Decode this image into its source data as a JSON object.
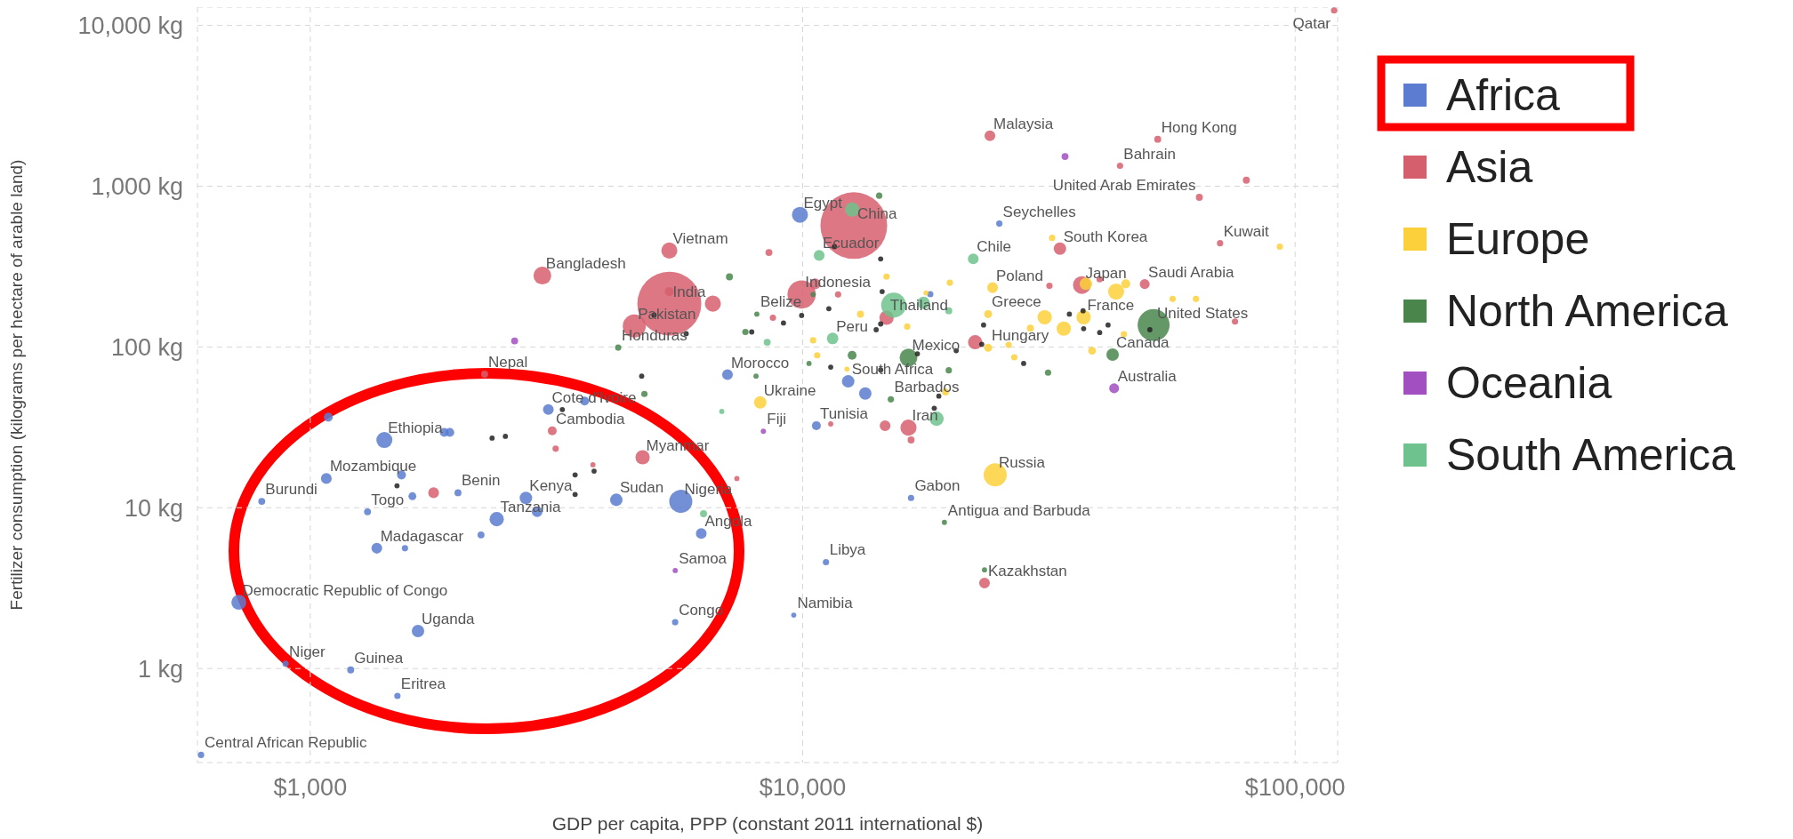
{
  "chart_data": {
    "type": "bubble",
    "xlabel": "GDP per capita, PPP (constant 2011 international $)",
    "ylabel": "Fertilizer consumption (kilograms per hectare of arable land)",
    "log": "xy",
    "grid": true,
    "legend": "top right",
    "xlim": [
      590,
      122000
    ],
    "xticks": [
      {
        "value": 1000,
        "label": "$1,000"
      },
      {
        "value": 10000,
        "label": "$10,000"
      },
      {
        "value": 100000,
        "label": "$100,000"
      }
    ],
    "ylim": [
      0.26,
      13000
    ],
    "yticks": [
      {
        "value": 1,
        "label": "1 kg"
      },
      {
        "value": 10,
        "label": "10 kg"
      },
      {
        "value": 100,
        "label": "100 kg"
      },
      {
        "value": 1000,
        "label": "1,000 kg"
      },
      {
        "value": 10000,
        "label": "10,000 kg"
      }
    ],
    "series": [
      {
        "name": "Africa",
        "color": "#5b7cd0",
        "x": [
          600,
          716,
          891,
          1208,
          1503,
          1655,
          1365,
          1557,
          2222,
          797,
          1078,
          1532,
          1307,
          1612,
          1414,
          1871,
          1920,
          1088,
          1995,
          2391,
          2889,
          2741,
          4183,
          5655,
          6223,
          3044,
          3606,
          7035,
          12370,
          13400,
          10660,
          18160,
          16600,
          9873,
          25080,
          11150,
          9590,
          5508
        ],
        "values": [
          0.29,
          2.58,
          1.07,
          0.98,
          0.675,
          1.71,
          5.6,
          5.6,
          6.78,
          10.96,
          15.2,
          16.0,
          9.44,
          11.8,
          26.4,
          29.4,
          29.4,
          36.6,
          12.4,
          8.49,
          9.44,
          11.5,
          11.2,
          10.96,
          6.92,
          40.8,
          46.1,
          67.3,
          61.1,
          51.3,
          32.4,
          213,
          11.5,
          664,
          585,
          4.59,
          2.15,
          1.94
        ],
        "sizes": [
          0.009,
          0.05,
          0.009,
          0.011,
          0.009,
          0.035,
          0.026,
          0.009,
          0.011,
          0.011,
          0.026,
          0.018,
          0.011,
          0.014,
          0.058,
          0.018,
          0.018,
          0.018,
          0.011,
          0.046,
          0.026,
          0.035,
          0.035,
          0.12,
          0.026,
          0.026,
          0.018,
          0.026,
          0.035,
          0.035,
          0.018,
          0.009,
          0.009,
          0.058,
          0.009,
          0.009,
          0.006,
          0.009
        ]
      },
      {
        "name": "Asia",
        "color": "#d65f6d",
        "x": [
          120000,
          24000,
          52600,
          44100,
          79600,
          63900,
          70400,
          33300,
          49500,
          36900,
          40100,
          31700,
          75500,
          22400,
          16400,
          14700,
          16600,
          11400,
          14800,
          9950,
          10600,
          11800,
          8700,
          12700,
          8540,
          5360,
          2960,
          5360,
          4550,
          5360,
          6570,
          2260,
          3100,
          3150,
          4730,
          3750,
          1780,
          7350,
          23400
        ],
        "values": [
          12400,
          2060,
          1960,
          1340,
          1090,
          853,
          442,
          409,
          246,
          243,
          264,
          240,
          144,
          107,
          31.5,
          32.4,
          26.4,
          33.2,
          152,
          212,
          247,
          212,
          152,
          569,
          387,
          398,
          278,
          186,
          135,
          221,
          186,
          67.7,
          30.1,
          23.3,
          20.6,
          18.5,
          12.4,
          15.2,
          3.4
        ],
        "sizes": [
          0.009,
          0.026,
          0.011,
          0.009,
          0.011,
          0.011,
          0.009,
          0.035,
          0.022,
          0.071,
          0.009,
          0.009,
          0.009,
          0.046,
          0.058,
          0.026,
          0.011,
          0.006,
          0.046,
          0.18,
          0.026,
          0.009,
          0.009,
          1,
          0.011,
          0.058,
          0.071,
          0.92,
          0.12,
          0.018,
          0.058,
          0.011,
          0.018,
          0.009,
          0.046,
          0.006,
          0.026,
          0.006,
          0.026
        ]
      },
      {
        "name": "Europe",
        "color": "#fcd03b",
        "x": [
          24600,
          8200,
          24300,
          23800,
          37200,
          37600,
          43300,
          45300,
          31000,
          33900,
          23800,
          26200,
          26900,
          29000,
          38700,
          44900,
          56400,
          62900,
          93100,
          32100,
          14800,
          19900,
          17800,
          13100,
          16300,
          10500,
          10700,
          12300,
          19500
        ],
        "values": [
          16.0,
          45.2,
          234,
          160,
          153,
          247,
          221,
          247,
          153,
          130,
          98.9,
          103,
          86.2,
          131,
          94.8,
          120,
          199,
          199,
          421,
          477,
          274,
          251,
          217,
          160,
          134,
          110,
          88.7,
          72.8,
          52.5
        ],
        "sizes": [
          0.12,
          0.035,
          0.026,
          0.014,
          0.046,
          0.035,
          0.058,
          0.018,
          0.046,
          0.046,
          0.014,
          0.009,
          0.009,
          0.011,
          0.014,
          0.009,
          0.009,
          0.009,
          0.009,
          0.009,
          0.009,
          0.009,
          0.006,
          0.011,
          0.009,
          0.009,
          0.009,
          0.006,
          0.011
        ]
      },
      {
        "name": "North America",
        "color": "#4a864c",
        "x": [
          51600,
          42600,
          16400,
          15100,
          19400,
          8070,
          7650,
          4220,
          7100,
          4770,
          8040,
          10300,
          12600,
          19800,
          31500,
          10500,
          14300,
          23400
        ],
        "values": [
          137,
          89.7,
          85.9,
          47.2,
          8.11,
          160,
          124,
          99.1,
          273,
          51.0,
          65.9,
          79.0,
          88.7,
          71.6,
          69.3,
          212,
          873,
          4.11
        ],
        "sizes": [
          0.23,
          0.035,
          0.071,
          0.009,
          0.006,
          0.006,
          0.009,
          0.009,
          0.011,
          0.009,
          0.006,
          0.006,
          0.018,
          0.009,
          0.009,
          0.006,
          0.009,
          0.006
        ]
      },
      {
        "name": "Oceania",
        "color": "#a24fc2",
        "x": [
          42900,
          34100,
          2600,
          5510,
          8320
        ],
        "values": [
          55.3,
          1530,
          109,
          4.07,
          29.9
        ],
        "sizes": [
          0.022,
          0.011,
          0.011,
          0.006,
          0.006
        ]
      },
      {
        "name": "South America",
        "color": "#6ec28d",
        "x": [
          22200,
          10800,
          12600,
          11500,
          15300,
          17600,
          19800,
          18700,
          8470,
          6290,
          6850
        ],
        "values": [
          353,
          371,
          716,
          113,
          182,
          188,
          168,
          35.8,
          107,
          9.18,
          39.7
        ],
        "sizes": [
          0.026,
          0.026,
          0.046,
          0.03,
          0.14,
          0.035,
          0.011,
          0.046,
          0.011,
          0.011,
          0.006
        ]
      },
      {
        "color": "#222222",
        "x": [
          2340,
          2490,
          1500,
          3450,
          3770,
          3450,
          3250,
          4710,
          4990,
          5800,
          7880,
          9140,
          9950,
          11300,
          14500,
          14400,
          14100,
          11400,
          14400,
          17100,
          20500,
          23100,
          23300,
          28100,
          34800,
          37100,
          37200,
          40100,
          41700,
          50700,
          18900,
          18500,
          14400,
          11600
        ],
        "values": [
          27.1,
          27.8,
          13.7,
          16.0,
          16.9,
          12.1,
          40.8,
          65.9,
          158,
          121,
          124,
          141,
          157,
          173,
          221,
          139,
          128,
          74.9,
          72.0,
          90.7,
          94.8,
          104,
          137,
          79.0,
          160,
          168,
          130,
          123,
          137,
          128,
          49.5,
          41.6,
          353,
          421
        ],
        "sizes": [
          0.006,
          0.006,
          0.006,
          0.006,
          0.006,
          0.006,
          0.006,
          0.006,
          0.006,
          0.006,
          0.006,
          0.006,
          0.006,
          0.006,
          0.006,
          0.006,
          0.006,
          0.006,
          0.006,
          0.006,
          0.006,
          0.006,
          0.006,
          0.006,
          0.006,
          0.006,
          0.006,
          0.006,
          0.006,
          0.006,
          0.006,
          0.006,
          0.006,
          0.006
        ]
      }
    ],
    "annotations": [
      {
        "text": "China",
        "x": 12700,
        "y": 569
      },
      {
        "text": "India",
        "x": 5360,
        "y": 186
      },
      {
        "text": "Pakistan",
        "x": 4550,
        "y": 135
      },
      {
        "text": "Bangladesh",
        "x": 2960,
        "y": 278
      },
      {
        "text": "Vietnam",
        "x": 5360,
        "y": 398
      },
      {
        "text": "Egypt",
        "x": 9873,
        "y": 664
      },
      {
        "text": "Ecuador",
        "x": 10800,
        "y": 371
      },
      {
        "text": "Indonesia",
        "x": 9950,
        "y": 212
      },
      {
        "text": "Belize",
        "x": 8070,
        "y": 160
      },
      {
        "text": "Honduras",
        "x": 4220,
        "y": 99.1
      },
      {
        "text": "Nepal",
        "x": 2260,
        "y": 67.7
      },
      {
        "text": "Morocco",
        "x": 7035,
        "y": 67.3
      },
      {
        "text": "Cote d'Ivoire",
        "x": 3044,
        "y": 40.8
      },
      {
        "text": "Cambodia",
        "x": 3100,
        "y": 30.1
      },
      {
        "text": "Ethiopia",
        "x": 1414,
        "y": 26.4
      },
      {
        "text": "Myanmar",
        "x": 4730,
        "y": 20.6
      },
      {
        "text": "Ukraine",
        "x": 8200,
        "y": 45.2
      },
      {
        "text": "Fiji",
        "x": 8320,
        "y": 29.9
      },
      {
        "text": "Tunisia",
        "x": 10660,
        "y": 32.4
      },
      {
        "text": "Iran",
        "x": 16400,
        "y": 31.5
      },
      {
        "text": "Barbados",
        "x": 15100,
        "y": 47.2
      },
      {
        "text": "South Africa",
        "x": 12370,
        "y": 61.1
      },
      {
        "text": "Mexico",
        "x": 16400,
        "y": 85.9
      },
      {
        "text": "Peru",
        "x": 11500,
        "y": 113
      },
      {
        "text": "Thailand",
        "x": 14800,
        "y": 152
      },
      {
        "text": "Hungary",
        "x": 23800,
        "y": 98.9
      },
      {
        "text": "Greece",
        "x": 23800,
        "y": 160
      },
      {
        "text": "Poland",
        "x": 24300,
        "y": 234
      },
      {
        "text": "France",
        "x": 37200,
        "y": 153
      },
      {
        "text": "Japan",
        "x": 36900,
        "y": 243
      },
      {
        "text": "Canada",
        "x": 42600,
        "y": 89.7
      },
      {
        "text": "Australia",
        "x": 42900,
        "y": 55.3
      },
      {
        "text": "United States",
        "x": 51600,
        "y": 137
      },
      {
        "text": "Saudi Arabia",
        "x": 49500,
        "y": 246
      },
      {
        "text": "South Korea",
        "x": 33300,
        "y": 409
      },
      {
        "text": "Chile",
        "x": 22200,
        "y": 353
      },
      {
        "text": "Seychelles",
        "x": 25080,
        "y": 585
      },
      {
        "text": "United Arab Emirates",
        "x": 63900,
        "y": 853
      },
      {
        "text": "Kuwait",
        "x": 70400,
        "y": 442
      },
      {
        "text": "Bahrain",
        "x": 44100,
        "y": 1340
      },
      {
        "text": "Hong Kong",
        "x": 52600,
        "y": 1960
      },
      {
        "text": "Malaysia",
        "x": 24000,
        "y": 2060
      },
      {
        "text": "Qatar",
        "x": 120000,
        "y": 12400
      },
      {
        "text": "Russia",
        "x": 24600,
        "y": 16.0
      },
      {
        "text": "Gabon",
        "x": 16600,
        "y": 11.5
      },
      {
        "text": "Antigua and Barbuda",
        "x": 19400,
        "y": 8.11
      },
      {
        "text": "Kazakhstan",
        "x": 23400,
        "y": 3.4
      },
      {
        "text": "Libya",
        "x": 11150,
        "y": 4.59
      },
      {
        "text": "Namibia",
        "x": 9590,
        "y": 2.15
      },
      {
        "text": "Mozambique",
        "x": 1078,
        "y": 15.2
      },
      {
        "text": "Burundi",
        "x": 797,
        "y": 10.96
      },
      {
        "text": "Togo",
        "x": 1307,
        "y": 9.44
      },
      {
        "text": "Benin",
        "x": 1995,
        "y": 12.4
      },
      {
        "text": "Kenya",
        "x": 2741,
        "y": 11.5
      },
      {
        "text": "Tanzania",
        "x": 2391,
        "y": 8.49
      },
      {
        "text": "Sudan",
        "x": 4183,
        "y": 11.2
      },
      {
        "text": "Nigeria",
        "x": 5655,
        "y": 10.96
      },
      {
        "text": "Angola",
        "x": 6223,
        "y": 6.92
      },
      {
        "text": "Madagascar",
        "x": 1365,
        "y": 5.6
      },
      {
        "text": "Samoa",
        "x": 5510,
        "y": 4.07
      },
      {
        "text": "Democratic Republic of Congo",
        "x": 716,
        "y": 2.58
      },
      {
        "text": "Uganda",
        "x": 1655,
        "y": 1.71
      },
      {
        "text": "Congo",
        "x": 5508,
        "y": 1.94
      },
      {
        "text": "Niger",
        "x": 891,
        "y": 1.07
      },
      {
        "text": "Guinea",
        "x": 1208,
        "y": 0.98
      },
      {
        "text": "Eritrea",
        "x": 1503,
        "y": 0.675
      },
      {
        "text": "Central African Republic",
        "x": 600,
        "y": 0.29
      }
    ]
  }
}
